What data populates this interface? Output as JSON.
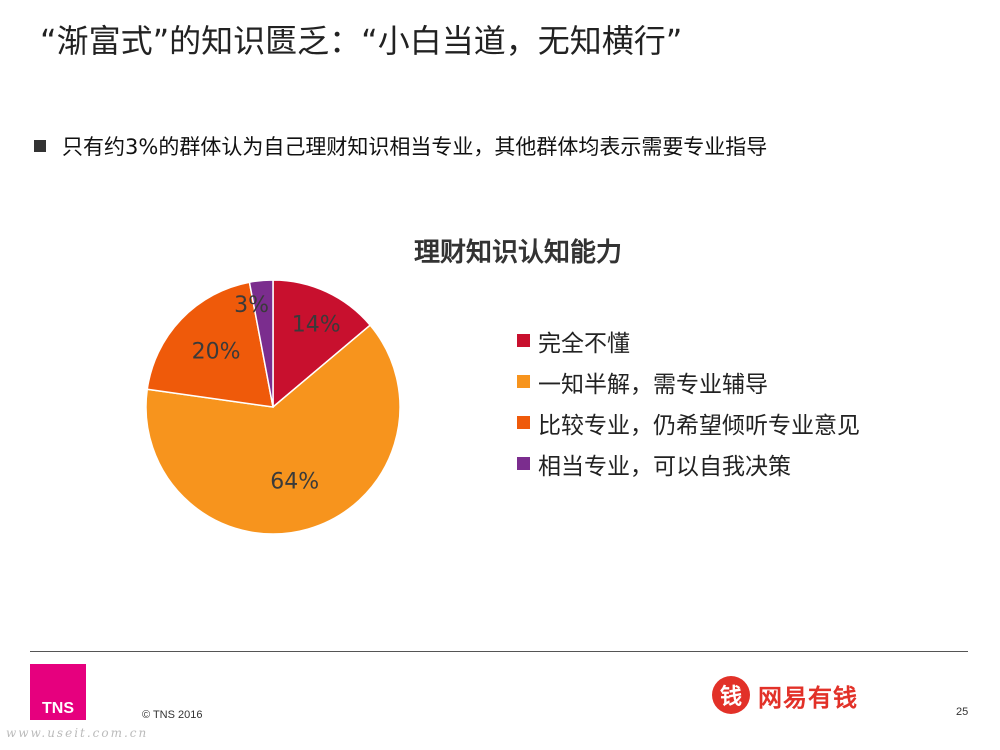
{
  "slide": {
    "title": "“渐富式”的知识匮乏：“小白当道，无知横行”",
    "bullet": "只有约3%的群体认为自己理财知识相当专业，其他群体均表示需要专业指导"
  },
  "chart_data": {
    "type": "pie",
    "title": "理财知识认知能力",
    "categories": [
      "完全不懂",
      "一知半解，需专业辅导",
      "比较专业，仍希望倾听专业意见",
      "相当专业，可以自我决策"
    ],
    "values": [
      14,
      64,
      20,
      3
    ],
    "value_labels": [
      "14%",
      "64%",
      "20%",
      "3%"
    ],
    "colors": [
      "#c8102e",
      "#f7941d",
      "#ef5a0a",
      "#7b2d8e"
    ],
    "legend_position": "right"
  },
  "footer": {
    "logo_text": "TNS",
    "copyright": "© TNS 2016",
    "page_number": "25",
    "brand_icon_glyph": "钱",
    "brand_name": "网易有钱",
    "watermark": "www.useit.com.cn"
  }
}
